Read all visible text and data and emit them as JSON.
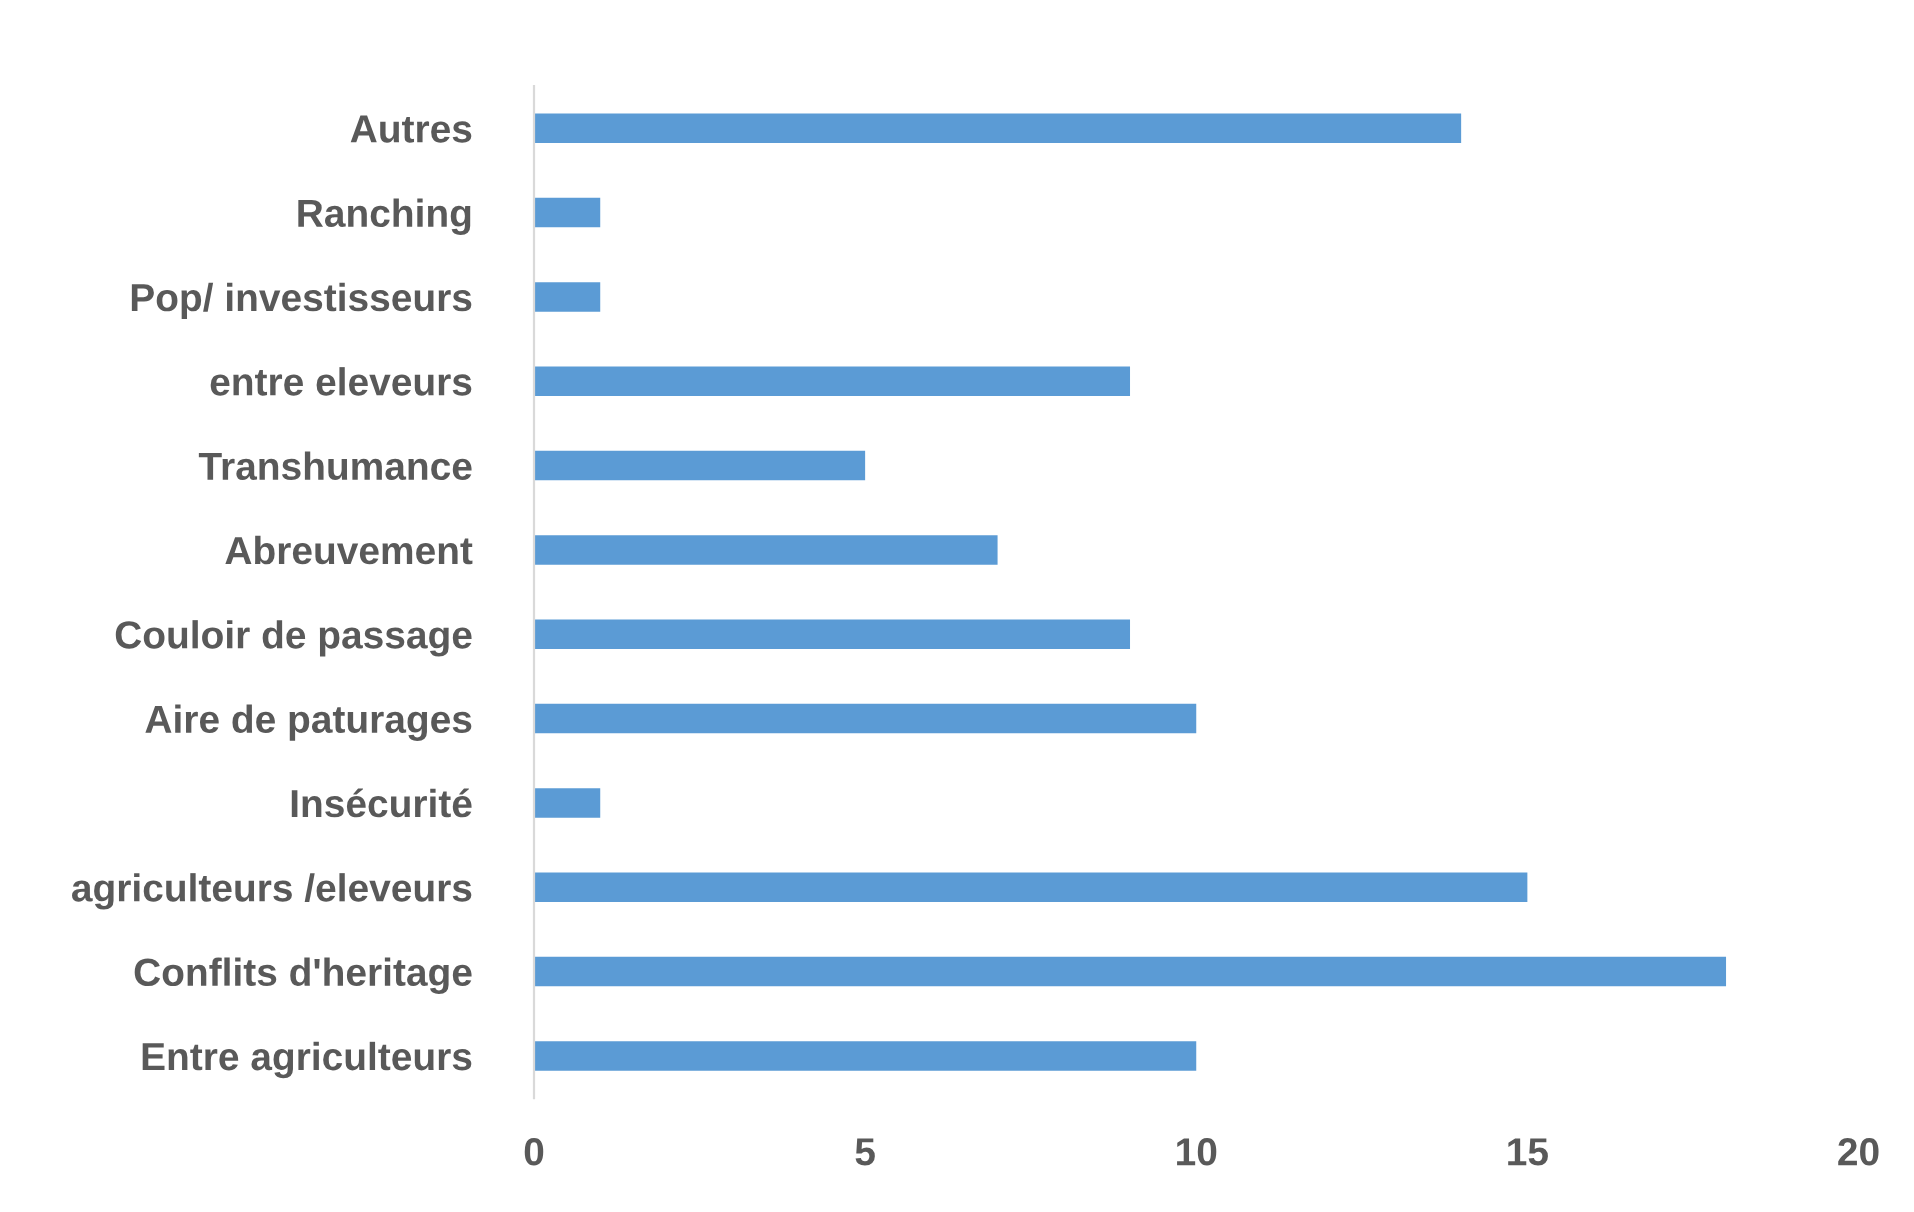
{
  "chart_data": {
    "type": "bar",
    "orientation": "horizontal",
    "categories": [
      "Autres",
      "Ranching",
      "Pop/ investisseurs",
      "entre eleveurs",
      "Transhumance",
      "Abreuvement",
      "Couloir de passage",
      "Aire de paturages",
      "Insécurité",
      "agriculteurs /eleveurs",
      "Conflits d'heritage",
      "Entre agriculteurs"
    ],
    "values": [
      14,
      1,
      1,
      9,
      5,
      7,
      9,
      10,
      1,
      15,
      18,
      10
    ],
    "color": "#5b9bd5",
    "xlim": [
      0,
      20
    ],
    "xticks": [
      0,
      5,
      10,
      15,
      20
    ],
    "grid": false,
    "legend": false
  }
}
